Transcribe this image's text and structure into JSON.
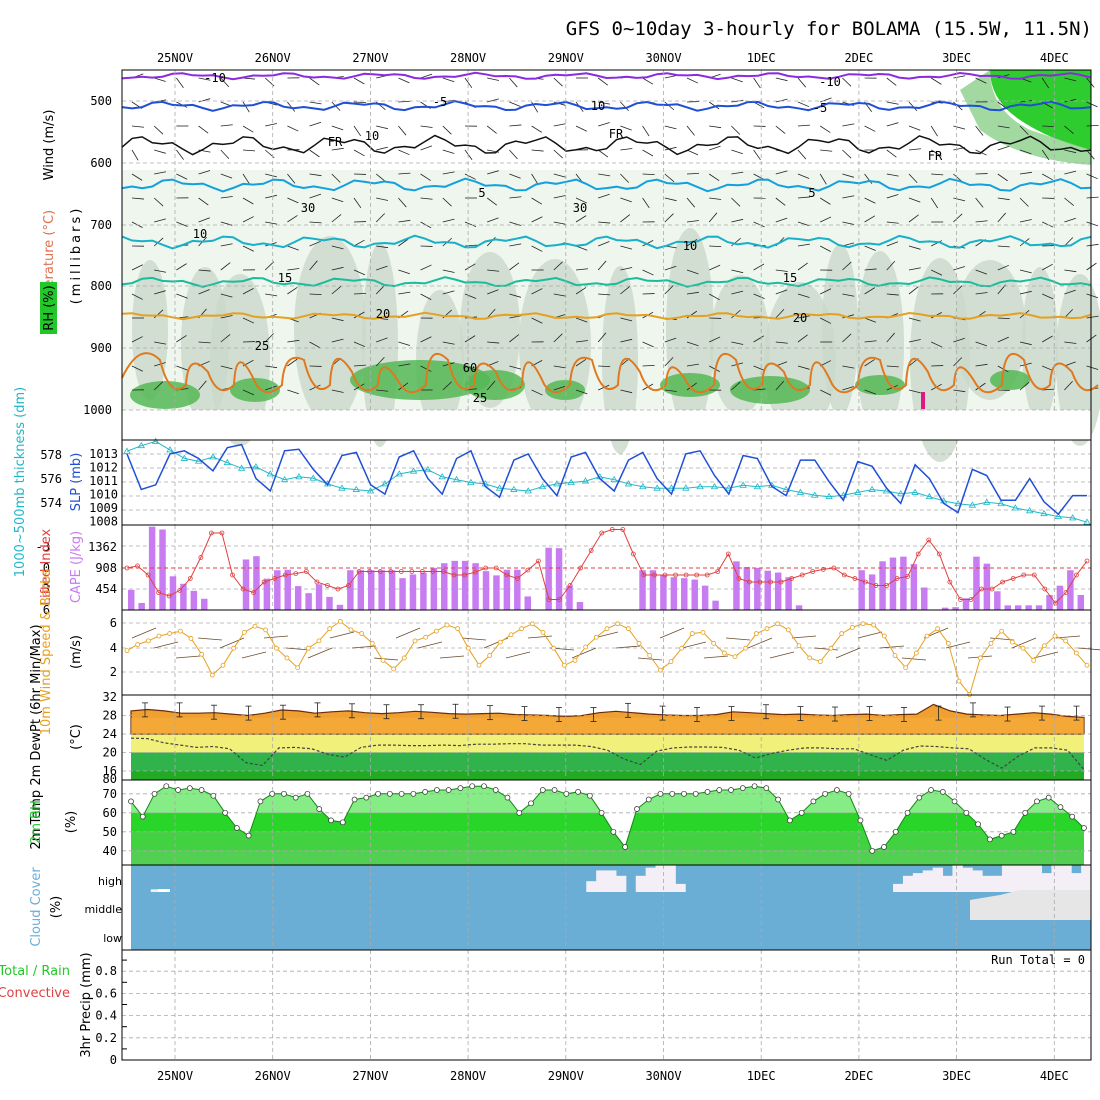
{
  "title": "GFS 0~10day 3-hourly for BOLAMA (15.5W, 11.5N)",
  "day_labels": [
    "25NOV",
    "26NOV",
    "27NOV",
    "28NOV",
    "29NOV",
    "30NOV",
    "1DEC",
    "2DEC",
    "3DEC",
    "4DEC"
  ],
  "run_total_label": "Run Total = 0",
  "colors": {
    "purple": "#8a2be2",
    "blue": "#1f4fd6",
    "cyan": "#14a0dc",
    "teal": "#1abc9c",
    "green_line": "#2fb36a",
    "orange": "#e6a020",
    "dark_orange": "#e0781e",
    "rh_green": "#22c82a",
    "cape": "#c77cf2",
    "li": "#e04040",
    "cloud": "#6aaed6"
  },
  "panels": {
    "upper_air": {
      "ylabel_wind": "Wind (m/s)",
      "ylabel_temp": "Temperature (°C)",
      "ylabel_rh": "RH (%)",
      "ylabel_p": "(millibars)",
      "yticks": [
        "500",
        "600",
        "700",
        "800",
        "900",
        "1000"
      ],
      "isotherm_labels": [
        "-10",
        "-10",
        "-5",
        "-5",
        "FR",
        "FR",
        "FR",
        "5",
        "5",
        "10",
        "10",
        "15",
        "15",
        "20",
        "20",
        "25",
        "25",
        "10",
        "10",
        "30",
        "30",
        "60"
      ]
    },
    "slp": {
      "ylabel_left": "1000~500mb thickness (dm)",
      "ylabel_right": "SLP (mb)",
      "left_ticks": [
        "578",
        "576",
        "574"
      ],
      "right_ticks": [
        "1013",
        "1012",
        "1011",
        "1010",
        "1009",
        "1008"
      ]
    },
    "cape": {
      "ylabel_left": "Lifted Index",
      "ylabel_right": "CAPE (J/kg)",
      "left_ticks": [
        "-3",
        "0",
        "3",
        "6"
      ],
      "right_ticks": [
        "1362",
        "908",
        "454"
      ]
    },
    "wind10m": {
      "ylabel": "10m Wind Speed & Barbs",
      "unit": "(m/s)",
      "ticks": [
        "6",
        "4",
        "2"
      ]
    },
    "temp2m": {
      "ylabel": "2m Temp 2m DewPt (6hr Min/Max)",
      "unit": "(°C)",
      "ticks": [
        "32",
        "28",
        "24",
        "20",
        "16"
      ],
      "bottom_tick": "80"
    },
    "rh2m": {
      "ylabel": "2m RH",
      "unit": "(%)",
      "ticks": [
        "70",
        "60",
        "50",
        "40"
      ]
    },
    "cloud": {
      "ylabel": "Cloud Cover",
      "unit": "(%)",
      "levels": [
        "high",
        "middle",
        "low"
      ]
    },
    "precip": {
      "ylabel_total": "Total / Rain",
      "ylabel_conv": "Convective",
      "ylabel": "3hr Precip (mm)",
      "ticks": [
        "0.8",
        "0.6",
        "0.4",
        "0.2",
        "0"
      ]
    }
  },
  "chart_data": [
    {
      "type": "line",
      "name": "slp",
      "x_start": "24NOV 18Z",
      "x_step_hours": 3,
      "series": [
        {
          "name": "SLP (mb)",
          "values": [
            1012.6,
            1010.3,
            1010.6,
            1012.6,
            1012.8,
            1012.3,
            1011.5,
            1013.0,
            1013.2,
            1011.0,
            1010.2,
            1012.8,
            1012.9,
            1011.6,
            1010.6,
            1012.5,
            1012.7,
            1010.6,
            1010.0,
            1012.4,
            1012.8,
            1011.0,
            1010.0,
            1012.3,
            1012.8,
            1010.5,
            1009.8,
            1012.2,
            1012.6,
            1011.0,
            1009.9,
            1012.4,
            1012.7,
            1011.0,
            1010.2,
            1012.2,
            1012.7,
            1011.0,
            1010.0,
            1012.6,
            1012.8,
            1011.2,
            1010.0,
            1012.5,
            1012.3,
            1010.5,
            1009.9,
            1012.2,
            1012.2,
            1010.8,
            1009.6,
            1012.1,
            1011.8,
            1010.4,
            1009.4,
            1011.9,
            1011.0,
            1009.4,
            1008.8,
            1011.6,
            1011.2,
            1009.6,
            1009.6,
            1011.0,
            1009.5,
            1008.7,
            1009.9,
            1009.9
          ]
        },
        {
          "name": "1000-500mb thickness (dm)",
          "values": [
            578.2,
            578.6,
            578.9,
            578.3,
            577.7,
            577.5,
            577.8,
            577.4,
            577.0,
            577.1,
            576.6,
            576.2,
            576.4,
            576.3,
            575.9,
            575.6,
            575.5,
            575.4,
            575.9,
            576.6,
            576.8,
            576.9,
            576.4,
            576.2,
            576.0,
            575.9,
            575.6,
            575.5,
            575.4,
            575.7,
            575.9,
            576.0,
            576.1,
            576.4,
            576.2,
            575.9,
            575.7,
            575.6,
            575.6,
            575.6,
            575.7,
            575.7,
            575.6,
            575.8,
            575.7,
            575.8,
            575.5,
            575.3,
            575.1,
            575.0,
            575.1,
            575.3,
            575.5,
            575.4,
            575.2,
            575.3,
            575.0,
            574.7,
            574.5,
            574.4,
            574.6,
            574.5,
            574.2,
            574.0,
            573.8,
            573.6,
            573.5,
            573.2
          ]
        }
      ]
    },
    {
      "type": "bar",
      "name": "cape_li",
      "x_start": "24NOV 18Z",
      "x_step_hours": 3,
      "series": [
        {
          "name": "CAPE (J/kg)",
          "values": [
            430,
            150,
            1780,
            1720,
            720,
            560,
            410,
            240,
            0,
            0,
            0,
            1080,
            1150,
            670,
            850,
            860,
            510,
            360,
            550,
            280,
            110,
            850,
            850,
            850,
            850,
            850,
            680,
            760,
            800,
            900,
            1000,
            1050,
            1050,
            1000,
            830,
            740,
            860,
            860,
            290,
            0,
            1330,
            1320,
            520,
            170,
            0,
            0,
            0,
            0,
            0,
            850,
            850,
            750,
            700,
            680,
            650,
            520,
            200,
            0,
            1040,
            920,
            900,
            840,
            800,
            700,
            100,
            0,
            0,
            0,
            0,
            0,
            850,
            760,
            1040,
            1120,
            1140,
            980,
            480,
            0,
            50,
            60,
            250,
            1140,
            990,
            400,
            100,
            100,
            100,
            100,
            320,
            520,
            850,
            320
          ]
        },
        {
          "name": "Lifted Index",
          "values": [
            0.0,
            0.3,
            -1.0,
            -3.5,
            -4.0,
            -3.2,
            -1.5,
            1.5,
            5.0,
            5.0,
            -1.0,
            -3.0,
            -3.5,
            -2.0,
            -1.5,
            -1.0,
            -0.8,
            -0.5,
            -2.0,
            -2.5,
            -3.0,
            -2.5,
            -0.5,
            -0.5,
            -0.5,
            -0.5,
            -0.5,
            -0.5,
            -0.5,
            -0.5,
            -0.5,
            -1.0,
            -1.0,
            -0.6,
            0.0,
            0.0,
            -1.0,
            -1.5,
            -0.3,
            1.0,
            -4.5,
            -4.5,
            -2.5,
            0.0,
            2.5,
            5.0,
            5.5,
            5.5,
            2.0,
            -1.0,
            -1.0,
            -1.0,
            -1.0,
            -1.0,
            -1.0,
            -1.0,
            -0.5,
            2.0,
            -1.5,
            -2.0,
            -2.0,
            -2.0,
            -2.0,
            -1.5,
            -1.0,
            -0.5,
            -0.2,
            0.0,
            -1.0,
            -1.5,
            -2.0,
            -2.5,
            -2.5,
            -1.5,
            -1.2,
            2.0,
            4.0,
            2.0,
            -2.0,
            -4.5,
            -4.5,
            -3.0,
            -3.0,
            -2.0,
            -1.5,
            -1.0,
            -1.0,
            -3.0,
            -5.0,
            -3.5,
            -1.0,
            1.0
          ]
        }
      ]
    },
    {
      "type": "line",
      "name": "wind10m",
      "x_start": "24NOV 18Z",
      "x_step_hours": 3,
      "series": [
        {
          "name": "10m Wind Speed (m/s)",
          "values": [
            3.8,
            4.3,
            4.6,
            5.0,
            5.2,
            5.4,
            4.8,
            3.5,
            1.8,
            2.6,
            4.0,
            5.3,
            5.8,
            5.5,
            4.0,
            3.2,
            2.4,
            4.0,
            4.6,
            5.6,
            6.2,
            5.5,
            5.2,
            4.4,
            3.0,
            2.3,
            3.2,
            4.6,
            4.9,
            5.4,
            5.9,
            5.6,
            4.0,
            2.6,
            3.4,
            4.5,
            5.1,
            5.6,
            6.0,
            5.3,
            4.0,
            2.6,
            3.0,
            4.1,
            4.9,
            5.6,
            6.0,
            5.6,
            4.4,
            3.4,
            2.2,
            2.9,
            4.0,
            5.2,
            5.3,
            4.4,
            3.6,
            3.3,
            4.0,
            5.2,
            5.6,
            6.0,
            5.5,
            4.2,
            3.2,
            2.9,
            4.0,
            5.2,
            5.7,
            6.0,
            5.9,
            5.0,
            3.4,
            2.4,
            3.6,
            5.0,
            5.6,
            4.4,
            1.3,
            0.2,
            3.2,
            4.4,
            5.4,
            4.5,
            4.0,
            3.0,
            4.2,
            5.0,
            4.6,
            3.6,
            2.6
          ]
        }
      ]
    },
    {
      "type": "area",
      "name": "temp2m",
      "x_start": "24NOV 18Z",
      "x_step_hours": 3,
      "series": [
        {
          "name": "2m Temp (°C)",
          "values": [
            29.0,
            29.3,
            29.0,
            28.5,
            28.5,
            28.6,
            28.3,
            28.0,
            28.5,
            29.2,
            29.0,
            28.5,
            28.8,
            29.0,
            28.6,
            28.4,
            28.6,
            28.9,
            28.7,
            28.4,
            28.3,
            28.4,
            28.5,
            28.2,
            28.1,
            28.0,
            27.8,
            28.0,
            28.6,
            28.9,
            28.6,
            28.3,
            28.1,
            28.0,
            28.0,
            28.2,
            28.8,
            28.6,
            28.4,
            28.2,
            28.3,
            28.1,
            28.0,
            28.2,
            28.3,
            28.0,
            28.2,
            28.3,
            30.4,
            29.0,
            28.3,
            28.1,
            28.0,
            28.3,
            28.6,
            28.3,
            27.8,
            27.6
          ]
        },
        {
          "name": "2m DewPt (°C)",
          "values": [
            23.1,
            23.0,
            22.1,
            21.6,
            21.1,
            21.3,
            20.8,
            17.8,
            17.2,
            21.0,
            21.1,
            20.8,
            19.6,
            19.0,
            21.1,
            21.6,
            21.6,
            21.5,
            21.5,
            21.6,
            21.5,
            21.8,
            21.8,
            21.9,
            21.9,
            21.6,
            21.6,
            21.6,
            21.3,
            20.5,
            18.6,
            17.4,
            20.3,
            21.0,
            21.2,
            21.2,
            21.1,
            20.5,
            18.8,
            19.8,
            20.5,
            21.0,
            21.0,
            20.8,
            20.8,
            19.5,
            18.3,
            20.5,
            21.4,
            21.3,
            21.0,
            20.8,
            18.5,
            16.6,
            19.2,
            21.0,
            21.0,
            20.5,
            16.3
          ]
        }
      ]
    },
    {
      "type": "area",
      "name": "rh2m",
      "x_start": "24NOV 18Z",
      "x_step_hours": 3,
      "series": [
        {
          "name": "2m RH (%)",
          "values": [
            66,
            58,
            70,
            74,
            72,
            73,
            72,
            69,
            60,
            52,
            48,
            66,
            70,
            70,
            68,
            70,
            62,
            56,
            55,
            67,
            68,
            70,
            70,
            70,
            70,
            71,
            72,
            72,
            73,
            74,
            74,
            72,
            68,
            60,
            65,
            72,
            72,
            70,
            71,
            69,
            60,
            50,
            42,
            62,
            67,
            70,
            70,
            70,
            70,
            71,
            72,
            72,
            73,
            74,
            73,
            67,
            56,
            60,
            66,
            70,
            72,
            70,
            56,
            40,
            42,
            50,
            60,
            68,
            72,
            71,
            66,
            60,
            54,
            46,
            48,
            50,
            60,
            66,
            68,
            63,
            58,
            52
          ]
        }
      ]
    },
    {
      "type": "bar",
      "name": "cloud_cover_high",
      "x_start": "24NOV 18Z",
      "x_step_hours": 3,
      "series": [
        {
          "name": "high (%)",
          "values": [
            0,
            0,
            10,
            0,
            0,
            0,
            0,
            0,
            0,
            0,
            0,
            0,
            0,
            0,
            0,
            0,
            0,
            0,
            0,
            0,
            0,
            0,
            0,
            0,
            0,
            0,
            0,
            0,
            0,
            0,
            0,
            0,
            0,
            0,
            0,
            0,
            0,
            0,
            0,
            0,
            0,
            0,
            0,
            0,
            0,
            0,
            40,
            80,
            80,
            60,
            0,
            60,
            90,
            100,
            100,
            30,
            0,
            0,
            0,
            0,
            0,
            0,
            0,
            0,
            0,
            0,
            0,
            0,
            0,
            0,
            0,
            0,
            0,
            0,
            0,
            0,
            0,
            30,
            60,
            70,
            80,
            90,
            60,
            100,
            90,
            80,
            60,
            60,
            100,
            100,
            100,
            100,
            70,
            100,
            100,
            70,
            100
          ]
        }
      ]
    }
  ]
}
